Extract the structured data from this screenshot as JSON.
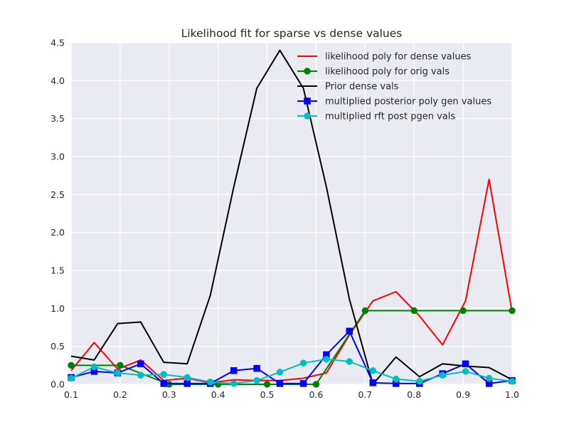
{
  "chart_data": {
    "type": "line",
    "title": "Likelihood fit for sparse vs dense values",
    "xlabel": "",
    "ylabel": "",
    "xlim": [
      0.1,
      1.0
    ],
    "ylim": [
      0.0,
      4.5
    ],
    "xticks": [
      0.1,
      0.2,
      0.3,
      0.4,
      0.5,
      0.6,
      0.7,
      0.8,
      0.9,
      1.0
    ],
    "xtick_labels": [
      "0.1",
      "0.2",
      "0.3",
      "0.4",
      "0.5",
      "0.6",
      "0.7",
      "0.8",
      "0.9",
      "1.0"
    ],
    "yticks": [
      0.0,
      0.5,
      1.0,
      1.5,
      2.0,
      2.5,
      3.0,
      3.5,
      4.0,
      4.5
    ],
    "ytick_labels": [
      "0.0",
      "0.5",
      "1.0",
      "1.5",
      "2.0",
      "2.5",
      "3.0",
      "3.5",
      "4.0",
      "4.5"
    ],
    "grid": true,
    "background": "#eaeaf2",
    "legend_position": "top-right",
    "series": [
      {
        "name": "likelihood poly for dense values",
        "color": "#ff0000",
        "marker": "none",
        "x": [
          0.1,
          0.147,
          0.195,
          0.242,
          0.289,
          0.337,
          0.384,
          0.432,
          0.479,
          0.526,
          0.574,
          0.621,
          0.668,
          0.716,
          0.763,
          0.811,
          0.858,
          0.905,
          0.953,
          1.0
        ],
        "y": [
          0.18,
          0.55,
          0.2,
          0.32,
          0.05,
          0.08,
          0.02,
          0.06,
          0.05,
          0.05,
          0.08,
          0.15,
          0.65,
          1.1,
          1.22,
          0.9,
          0.52,
          1.1,
          2.7,
          0.95
        ]
      },
      {
        "name": "likelihood poly for orig vals",
        "color": "#008000",
        "marker": "circle",
        "x": [
          0.1,
          0.2,
          0.3,
          0.4,
          0.5,
          0.6,
          0.7,
          0.8,
          0.9,
          1.0
        ],
        "y": [
          0.25,
          0.25,
          0.0,
          0.0,
          0.0,
          0.0,
          0.97,
          0.97,
          0.97,
          0.97
        ]
      },
      {
        "name": "Prior dense vals",
        "color": "#000000",
        "marker": "none",
        "x": [
          0.1,
          0.147,
          0.195,
          0.242,
          0.289,
          0.337,
          0.384,
          0.432,
          0.479,
          0.526,
          0.574,
          0.621,
          0.668,
          0.716,
          0.763,
          0.811,
          0.858,
          0.905,
          0.953,
          1.0
        ],
        "y": [
          0.37,
          0.32,
          0.8,
          0.82,
          0.29,
          0.27,
          1.17,
          2.6,
          3.9,
          4.4,
          3.9,
          2.6,
          1.12,
          0.0,
          0.36,
          0.1,
          0.27,
          0.24,
          0.22,
          0.06
        ]
      },
      {
        "name": "multiplied posterior poly gen values",
        "color": "#0000ff",
        "marker": "square",
        "x": [
          0.1,
          0.147,
          0.195,
          0.242,
          0.289,
          0.337,
          0.384,
          0.432,
          0.479,
          0.526,
          0.574,
          0.621,
          0.668,
          0.716,
          0.763,
          0.811,
          0.858,
          0.905,
          0.953,
          1.0
        ],
        "y": [
          0.09,
          0.17,
          0.15,
          0.27,
          0.01,
          0.01,
          0.01,
          0.18,
          0.21,
          0.01,
          0.01,
          0.39,
          0.7,
          0.02,
          0.01,
          0.01,
          0.14,
          0.27,
          0.01,
          0.05
        ]
      },
      {
        "name": "multiplied rft post pgen vals",
        "color": "#00bfbf",
        "marker": "circle",
        "x": [
          0.1,
          0.147,
          0.195,
          0.242,
          0.289,
          0.337,
          0.384,
          0.432,
          0.479,
          0.526,
          0.574,
          0.621,
          0.668,
          0.716,
          0.763,
          0.811,
          0.858,
          0.905,
          0.953,
          1.0
        ],
        "y": [
          0.08,
          0.23,
          0.15,
          0.12,
          0.13,
          0.09,
          0.03,
          0.01,
          0.05,
          0.16,
          0.28,
          0.33,
          0.3,
          0.18,
          0.07,
          0.04,
          0.12,
          0.17,
          0.08,
          0.04
        ]
      }
    ]
  }
}
